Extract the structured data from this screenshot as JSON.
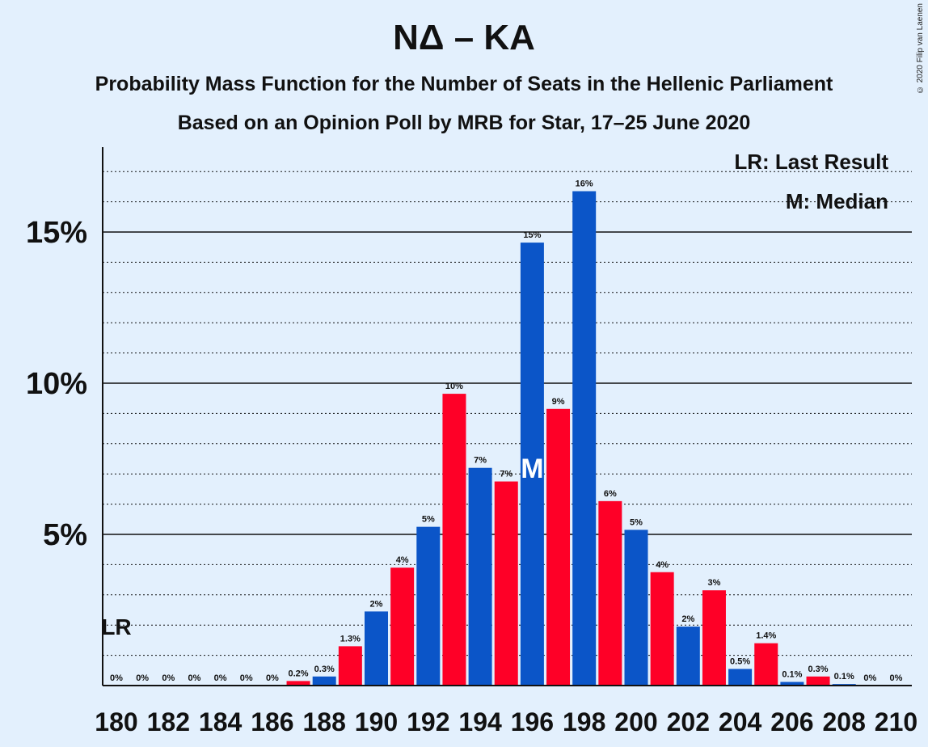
{
  "chart_data": {
    "type": "bar",
    "title": "ΝΔ – ΚΑ",
    "subtitle": "Probability Mass Function for the Number of Seats in the Hellenic Parliament",
    "subtitle2": "Based on an Opinion Poll by MRB for Star, 17–25 June 2020",
    "copyright": "© 2020 Filip van Laenen",
    "x": [
      180,
      181,
      182,
      183,
      184,
      185,
      186,
      187,
      188,
      189,
      190,
      191,
      192,
      193,
      194,
      195,
      196,
      197,
      198,
      199,
      200,
      201,
      202,
      203,
      204,
      205,
      206,
      207,
      208,
      209,
      210
    ],
    "values": [
      0,
      0,
      0,
      0,
      0,
      0,
      0,
      0.15,
      0.3,
      1.3,
      2.45,
      3.9,
      5.25,
      9.65,
      7.2,
      6.75,
      14.65,
      9.15,
      16.35,
      6.1,
      5.15,
      3.75,
      1.95,
      3.15,
      0.55,
      1.4,
      0.12,
      0.3,
      0.05,
      0,
      0
    ],
    "data_labels": [
      "0%",
      "0%",
      "0%",
      "0%",
      "0%",
      "0%",
      "0%",
      "0.2%",
      "0.3%",
      "1.3%",
      "2%",
      "4%",
      "5%",
      "10%",
      "7%",
      "7%",
      "15%",
      "9%",
      "16%",
      "6%",
      "5%",
      "4%",
      "2%",
      "3%",
      "0.5%",
      "1.4%",
      "0.1%",
      "0.3%",
      "0.1%",
      "0%",
      "0%"
    ],
    "x_tick_labels": [
      "180",
      "182",
      "184",
      "186",
      "188",
      "190",
      "192",
      "194",
      "196",
      "198",
      "200",
      "202",
      "204",
      "206",
      "208",
      "210"
    ],
    "y_ticks": [
      {
        "value": 5,
        "label": "5%"
      },
      {
        "value": 10,
        "label": "10%"
      },
      {
        "value": 15,
        "label": "15%"
      }
    ],
    "ylim": [
      0,
      17.8
    ],
    "grid": "dotted every 1%, solid at 5%",
    "colors": {
      "blue": "#0b55c8",
      "red": "#fe0027",
      "background": "#e3f0fd"
    },
    "last_result": {
      "seat": 180,
      "label": "LR"
    },
    "median": {
      "seat": 196,
      "label": "M"
    },
    "legend": [
      "LR: Last Result",
      "M: Median"
    ],
    "legend_position": "top-right"
  }
}
